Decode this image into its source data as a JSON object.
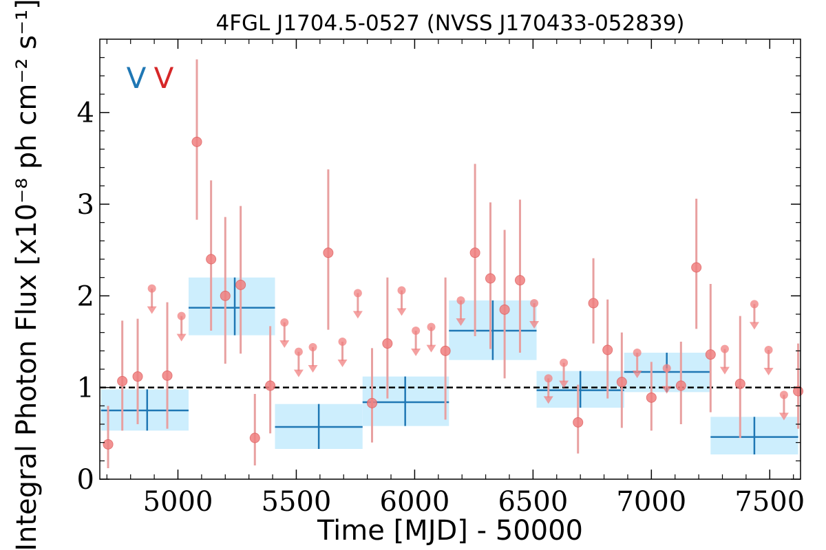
{
  "chart_data": {
    "type": "scatter",
    "title": "4FGL J1704.5-0527 (NVSS J170433-052839)",
    "xlabel": "Time [MJD] - 50000",
    "ylabel": "Integral Photon Flux [x10⁻⁸ ph cm⁻² s⁻¹]",
    "xlim": [
      4670,
      7630
    ],
    "ylim": [
      0,
      4.8
    ],
    "x_ticks": [
      5000,
      5500,
      6000,
      6500,
      7000,
      7500
    ],
    "y_ticks": [
      0,
      1,
      2,
      3,
      4
    ],
    "reference_line": 1.0,
    "legend_markers": [
      {
        "text": "V",
        "color": "#1f77b4"
      },
      {
        "text": "V",
        "color": "#d62728"
      }
    ],
    "colors": {
      "long_bin_line": "#1f77b4",
      "long_bin_fill": "#cdeefd",
      "short_points": "#f08080",
      "short_errorbars": "#e8a0a0",
      "reference_line": "#000000"
    },
    "series": [
      {
        "values": [
          {
            "x0": 4675,
            "x1": 5045,
            "x": 4870,
            "y": 0.75,
            "lo": 0.53,
            "hi": 0.98
          },
          {
            "x0": 5045,
            "x1": 5410,
            "x": 5240,
            "y": 1.87,
            "lo": 1.57,
            "hi": 2.2
          },
          {
            "x0": 5410,
            "x1": 5780,
            "x": 5595,
            "y": 0.57,
            "lo": 0.33,
            "hi": 0.82
          },
          {
            "x0": 5780,
            "x1": 6145,
            "x": 5960,
            "y": 0.84,
            "lo": 0.58,
            "hi": 1.12
          },
          {
            "x0": 6145,
            "x1": 6515,
            "x": 6330,
            "y": 1.62,
            "lo": 1.3,
            "hi": 1.95
          },
          {
            "x0": 6515,
            "x1": 6885,
            "x": 6700,
            "y": 0.97,
            "lo": 0.78,
            "hi": 1.18
          },
          {
            "x0": 6885,
            "x1": 7250,
            "x": 7065,
            "y": 1.17,
            "lo": 0.95,
            "hi": 1.38
          },
          {
            "x0": 7250,
            "x1": 7620,
            "x": 7435,
            "y": 0.46,
            "lo": 0.27,
            "hi": 0.68
          }
        ]
      },
      {
        "values": [
          {
            "x": 4705,
            "y": 0.38,
            "lo": 0.12,
            "hi": 0.8
          },
          {
            "x": 4765,
            "y": 1.07,
            "lo": 0.53,
            "hi": 1.73
          },
          {
            "x": 4830,
            "y": 1.12,
            "lo": 0.6,
            "hi": 1.75
          },
          {
            "x": 4890,
            "y": 2.08,
            "ul": true
          },
          {
            "x": 4955,
            "y": 1.13,
            "lo": 0.55,
            "hi": 1.93
          },
          {
            "x": 5015,
            "y": 1.78,
            "ul": true
          },
          {
            "x": 5080,
            "y": 3.68,
            "lo": 2.83,
            "hi": 4.58
          },
          {
            "x": 5140,
            "y": 2.4,
            "lo": 1.62,
            "hi": 3.26
          },
          {
            "x": 5200,
            "y": 2.0,
            "lo": 1.26,
            "hi": 2.86
          },
          {
            "x": 5265,
            "y": 2.12,
            "lo": 1.37,
            "hi": 2.98
          },
          {
            "x": 5325,
            "y": 0.45,
            "lo": 0.15,
            "hi": 0.93
          },
          {
            "x": 5390,
            "y": 1.02,
            "lo": 0.5,
            "hi": 1.67
          },
          {
            "x": 5450,
            "y": 1.71,
            "ul": true
          },
          {
            "x": 5510,
            "y": 1.39,
            "ul": true
          },
          {
            "x": 5570,
            "y": 1.44,
            "ul": true
          },
          {
            "x": 5635,
            "y": 2.47,
            "lo": 1.63,
            "hi": 3.38
          },
          {
            "x": 5695,
            "y": 1.5,
            "ul": true
          },
          {
            "x": 5760,
            "y": 2.03,
            "ul": true
          },
          {
            "x": 5820,
            "y": 0.83,
            "lo": 0.4,
            "hi": 1.43
          },
          {
            "x": 5885,
            "y": 1.48,
            "lo": 0.88,
            "hi": 2.2
          },
          {
            "x": 5945,
            "y": 2.06,
            "ul": true
          },
          {
            "x": 6005,
            "y": 1.62,
            "ul": true
          },
          {
            "x": 6070,
            "y": 1.66,
            "ul": true
          },
          {
            "x": 6130,
            "y": 1.4,
            "lo": 0.65,
            "hi": 2.2
          },
          {
            "x": 6195,
            "y": 1.95,
            "ul": true
          },
          {
            "x": 6255,
            "y": 2.47,
            "lo": 1.56,
            "hi": 3.44
          },
          {
            "x": 6320,
            "y": 2.19,
            "lo": 1.42,
            "hi": 3.02
          },
          {
            "x": 6380,
            "y": 1.85,
            "lo": 1.1,
            "hi": 2.72
          },
          {
            "x": 6445,
            "y": 2.17,
            "lo": 1.38,
            "hi": 3.05
          },
          {
            "x": 6505,
            "y": 1.92,
            "ul": true
          },
          {
            "x": 6565,
            "y": 1.1,
            "ul": true
          },
          {
            "x": 6630,
            "y": 1.27,
            "ul": true
          },
          {
            "x": 6690,
            "y": 0.62,
            "lo": 0.28,
            "hi": 1.03
          },
          {
            "x": 6755,
            "y": 1.92,
            "lo": 1.48,
            "hi": 2.41
          },
          {
            "x": 6815,
            "y": 1.41,
            "lo": 0.88,
            "hi": 1.96
          },
          {
            "x": 6875,
            "y": 1.06,
            "lo": 0.56,
            "hi": 1.6
          },
          {
            "x": 6940,
            "y": 1.38,
            "ul": true
          },
          {
            "x": 7000,
            "y": 0.89,
            "lo": 0.53,
            "hi": 1.28
          },
          {
            "x": 7065,
            "y": 1.21,
            "ul": true
          },
          {
            "x": 7125,
            "y": 1.02,
            "lo": 0.6,
            "hi": 1.5
          },
          {
            "x": 7190,
            "y": 2.31,
            "lo": 1.64,
            "hi": 3.06
          },
          {
            "x": 7250,
            "y": 1.36,
            "lo": 0.73,
            "hi": 2.13
          },
          {
            "x": 7310,
            "y": 1.42,
            "ul": true
          },
          {
            "x": 7375,
            "y": 1.04,
            "lo": 0.45,
            "hi": 1.78
          },
          {
            "x": 7435,
            "y": 1.91,
            "ul": true
          },
          {
            "x": 7495,
            "y": 1.41,
            "ul": true
          },
          {
            "x": 7560,
            "y": 0.92,
            "ul": true
          },
          {
            "x": 7620,
            "y": 0.96,
            "lo": 0.55,
            "hi": 1.48
          }
        ]
      }
    ]
  }
}
